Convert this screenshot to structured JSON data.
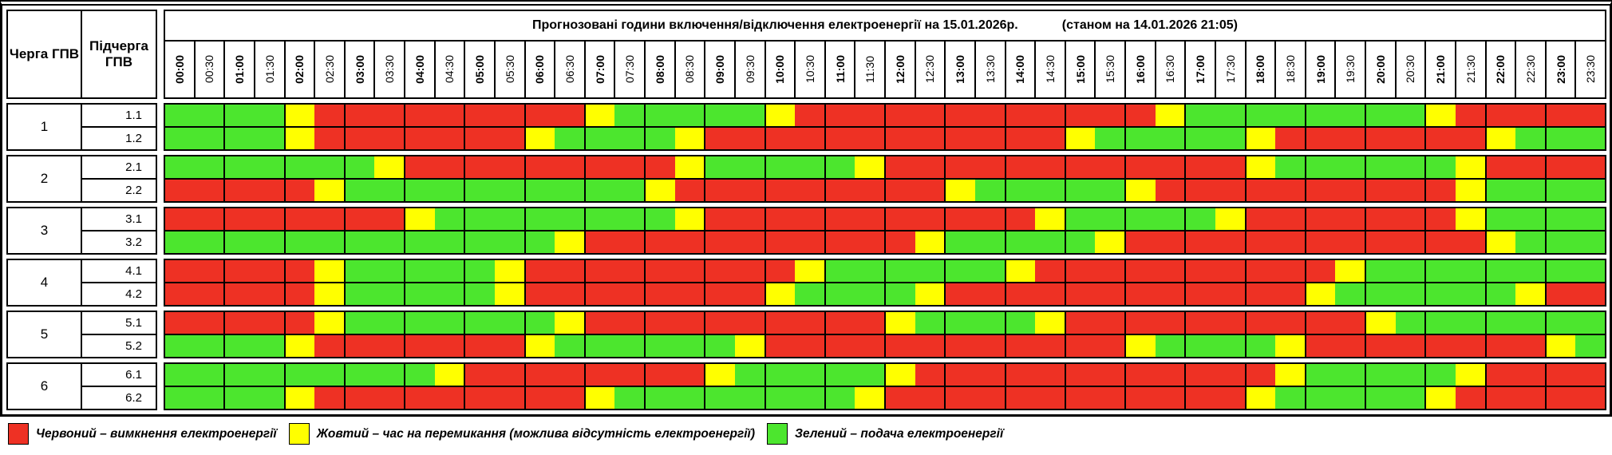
{
  "title": {
    "main": "Прогнозовані години включення/відключення електроенергії на 15.01.2026р.",
    "as_of": "(станом на 14.01.2026 21:05)"
  },
  "columns": {
    "queue": "Черга ГПВ",
    "subqueue": "Підчерга ГПВ"
  },
  "time_slots": [
    "00:00",
    "00:30",
    "01:00",
    "01:30",
    "02:00",
    "02:30",
    "03:00",
    "03:30",
    "04:00",
    "04:30",
    "05:00",
    "05:30",
    "06:00",
    "06:30",
    "07:00",
    "07:30",
    "08:00",
    "08:30",
    "09:00",
    "09:30",
    "10:00",
    "10:30",
    "11:00",
    "11:30",
    "12:00",
    "12:30",
    "13:00",
    "13:30",
    "14:00",
    "14:30",
    "15:00",
    "15:30",
    "16:00",
    "16:30",
    "17:00",
    "17:30",
    "18:00",
    "18:30",
    "19:00",
    "19:30",
    "20:00",
    "20:30",
    "21:00",
    "21:30",
    "22:00",
    "22:30",
    "23:00",
    "23:30"
  ],
  "colors": {
    "red": "#ee3124",
    "yellow": "#ffff00",
    "green": "#4ce62e"
  },
  "cell_code_legend": "per row: 48 half-hour slots 00:00–23:30; G=green(power on), Y=yellow(switching), R=red(power off)",
  "schedule": {
    "groups": [
      {
        "queue": "1",
        "rows": [
          {
            "label": "1.1",
            "pattern": "GGGGYRRRRRRRRRYGGGGGYRRRRRRRRRRRRYGGGGGGGGYRRRRR"
          },
          {
            "label": "1.2",
            "pattern": "GGGGYRRRRRRRYGGGGYRRRRRRRRRRRRYGGGGGYRRRRRRRYGGG"
          }
        ]
      },
      {
        "queue": "2",
        "rows": [
          {
            "label": "2.1",
            "pattern": "GGGGGGGYRRRRRRRRRYGGGGGYRRRRRRRRRRRRYGGGGGGYRRRR"
          },
          {
            "label": "2.2",
            "pattern": "RRRRRYGGGGGGGGGGYRRRRRRRRRYGGGGGYRRRRRRRRRRYGGGG"
          }
        ]
      },
      {
        "queue": "3",
        "rows": [
          {
            "label": "3.1",
            "pattern": "RRRRRRRRYGGGGGGGGYRRRRRRRRRRRYGGGGGYRRRRRRRYGGGG"
          },
          {
            "label": "3.2",
            "pattern": "GGGGGGGGGGGGGYRRRRRRRRRRRYGGGGGYRRRRRRRRRRRRYGGG"
          }
        ]
      },
      {
        "queue": "4",
        "rows": [
          {
            "label": "4.1",
            "pattern": "RRRRRYGGGGGYRRRRRRRRRYGGGGGGYRRRRRRRRRRYGGGGGGGG"
          },
          {
            "label": "4.2",
            "pattern": "RRRRRYGGGGGYRRRRRRRRYGGGGYRRRRRRRRRRRRYGGGGGGYRR"
          }
        ]
      },
      {
        "queue": "5",
        "rows": [
          {
            "label": "5.1",
            "pattern": "RRRRRYGGGGGGGYRRRRRRRRRRYGGGGYRRRRRRRRRRYGGGGGGG"
          },
          {
            "label": "5.2",
            "pattern": "GGGGYRRRRRRRYGGGGGGYRRRRRRRRRRRRYGGGGYRRRRRRRRYG"
          }
        ]
      },
      {
        "queue": "6",
        "rows": [
          {
            "label": "6.1",
            "pattern": "GGGGGGGGGYRRRRRRRRYGGGGGYRRRRRRRRRRRRYGGGGGYRRRR"
          },
          {
            "label": "6.2",
            "pattern": "GGGGYRRRRRRRRRYGGGGGGGGYRRRRRRRRRRRRYGGGGGYRRRRR"
          }
        ]
      }
    ]
  },
  "legend": [
    {
      "key": "red",
      "color": "#ee3124",
      "label": "Червоний – вимкнення електроенергії"
    },
    {
      "key": "yellow",
      "color": "#ffff00",
      "label": "Жовтий – час на перемикання (можлива відсутність електроенергії)"
    },
    {
      "key": "green",
      "color": "#4ce62e",
      "label": "Зелений – подача електроенергії"
    }
  ]
}
